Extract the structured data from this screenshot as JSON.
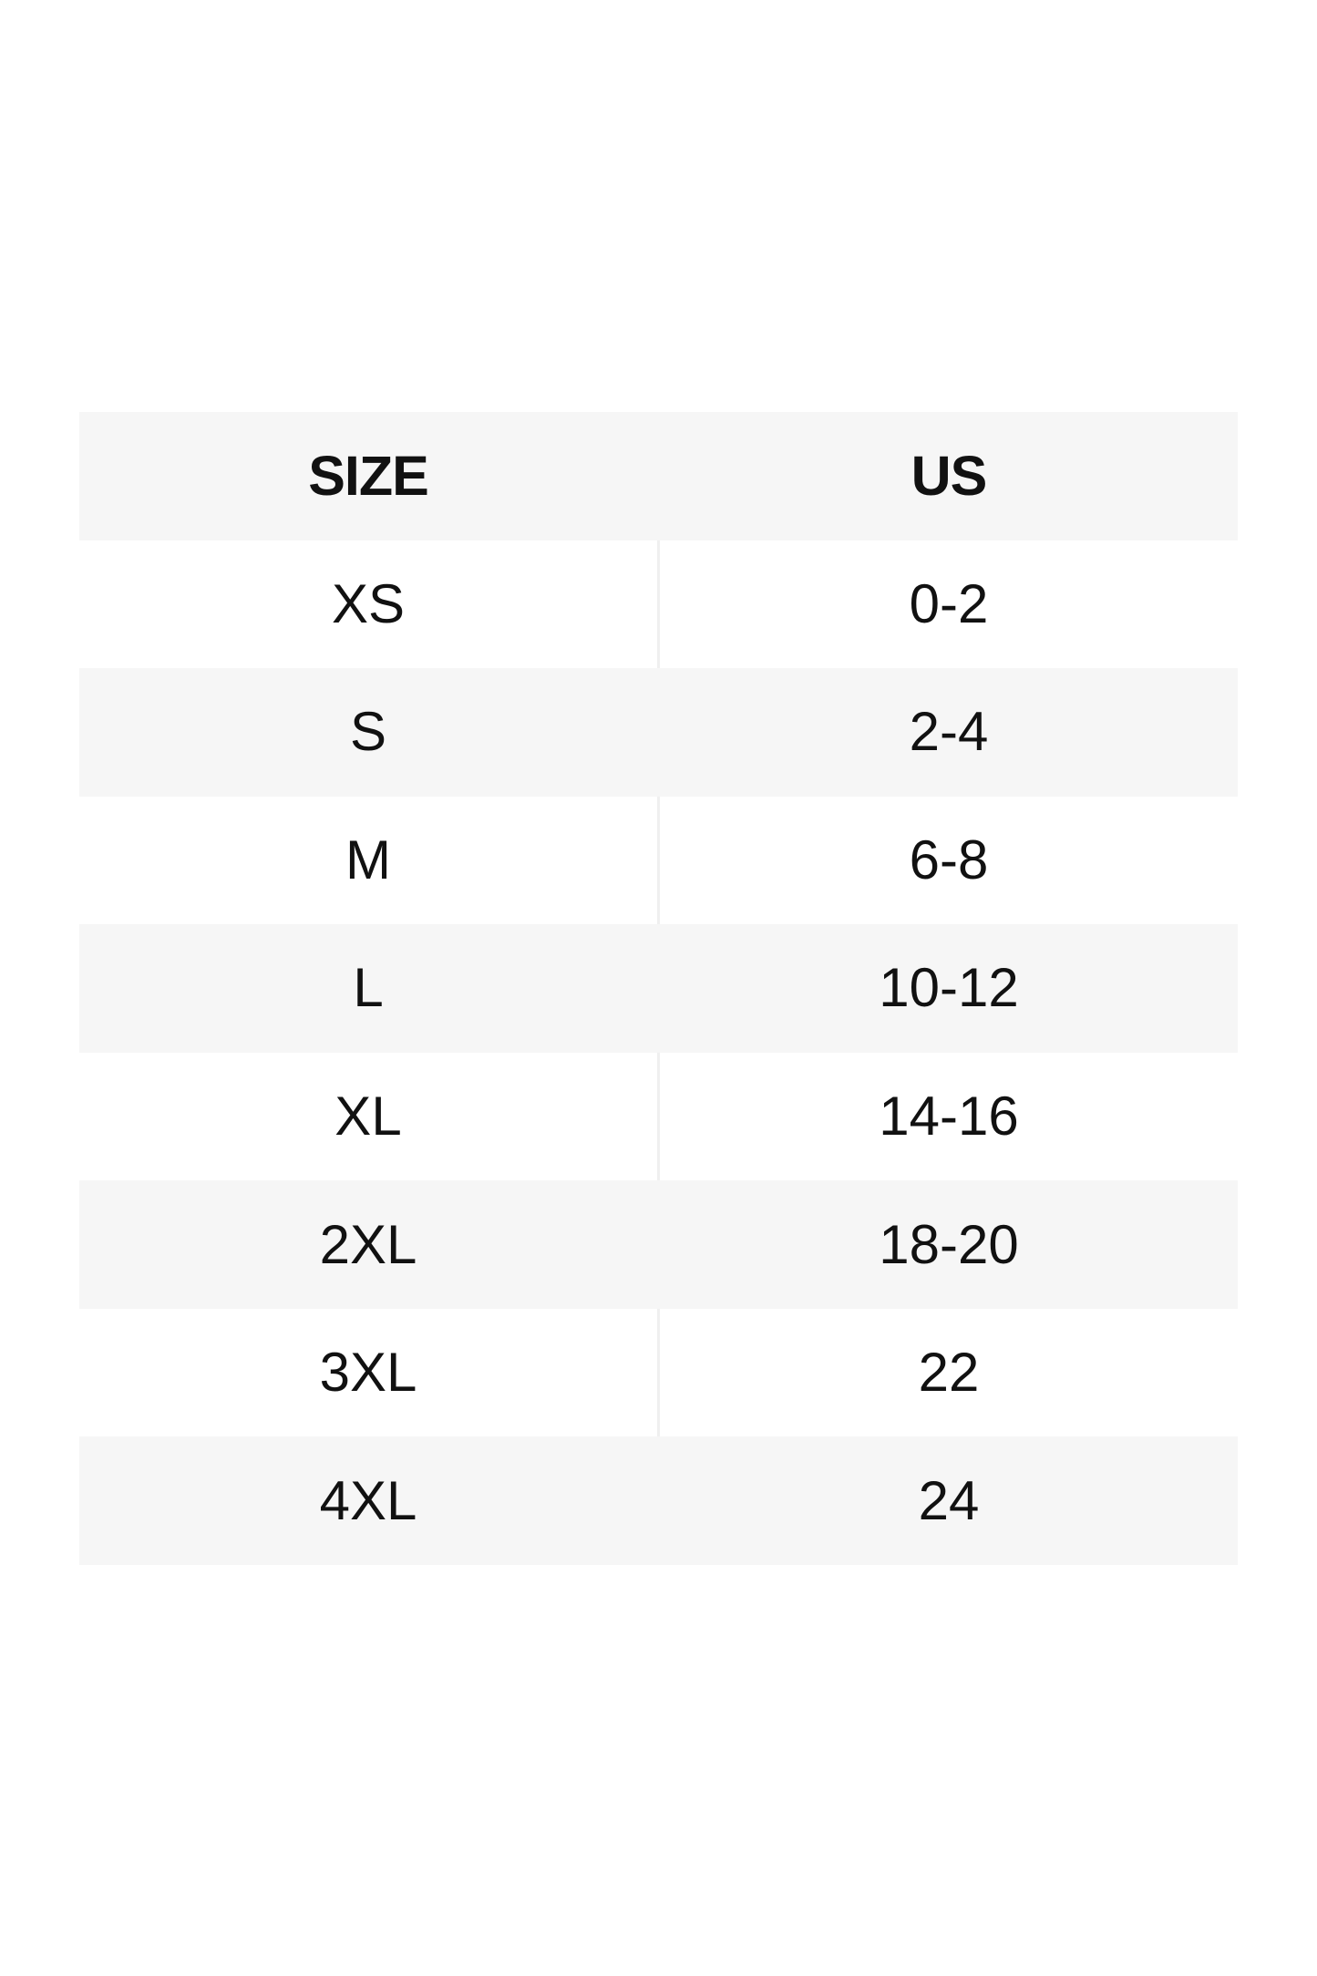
{
  "chart_data": {
    "type": "table",
    "columns": [
      "SIZE",
      "US"
    ],
    "rows": [
      [
        "XS",
        "0-2"
      ],
      [
        "S",
        "2-4"
      ],
      [
        "M",
        "6-8"
      ],
      [
        "L",
        "10-12"
      ],
      [
        "XL",
        "14-16"
      ],
      [
        "2XL",
        "18-20"
      ],
      [
        "3XL",
        "22"
      ],
      [
        "4XL",
        "24"
      ]
    ],
    "layout_hints": {
      "header_background": "striped",
      "row_striping": "alternating starting white after header",
      "column_divider_visible_on_white_rows": true
    }
  },
  "colors": {
    "stripe": "#f6f6f6",
    "divider": "#efefef",
    "text": "#111111",
    "page_background": "#ffffff"
  }
}
